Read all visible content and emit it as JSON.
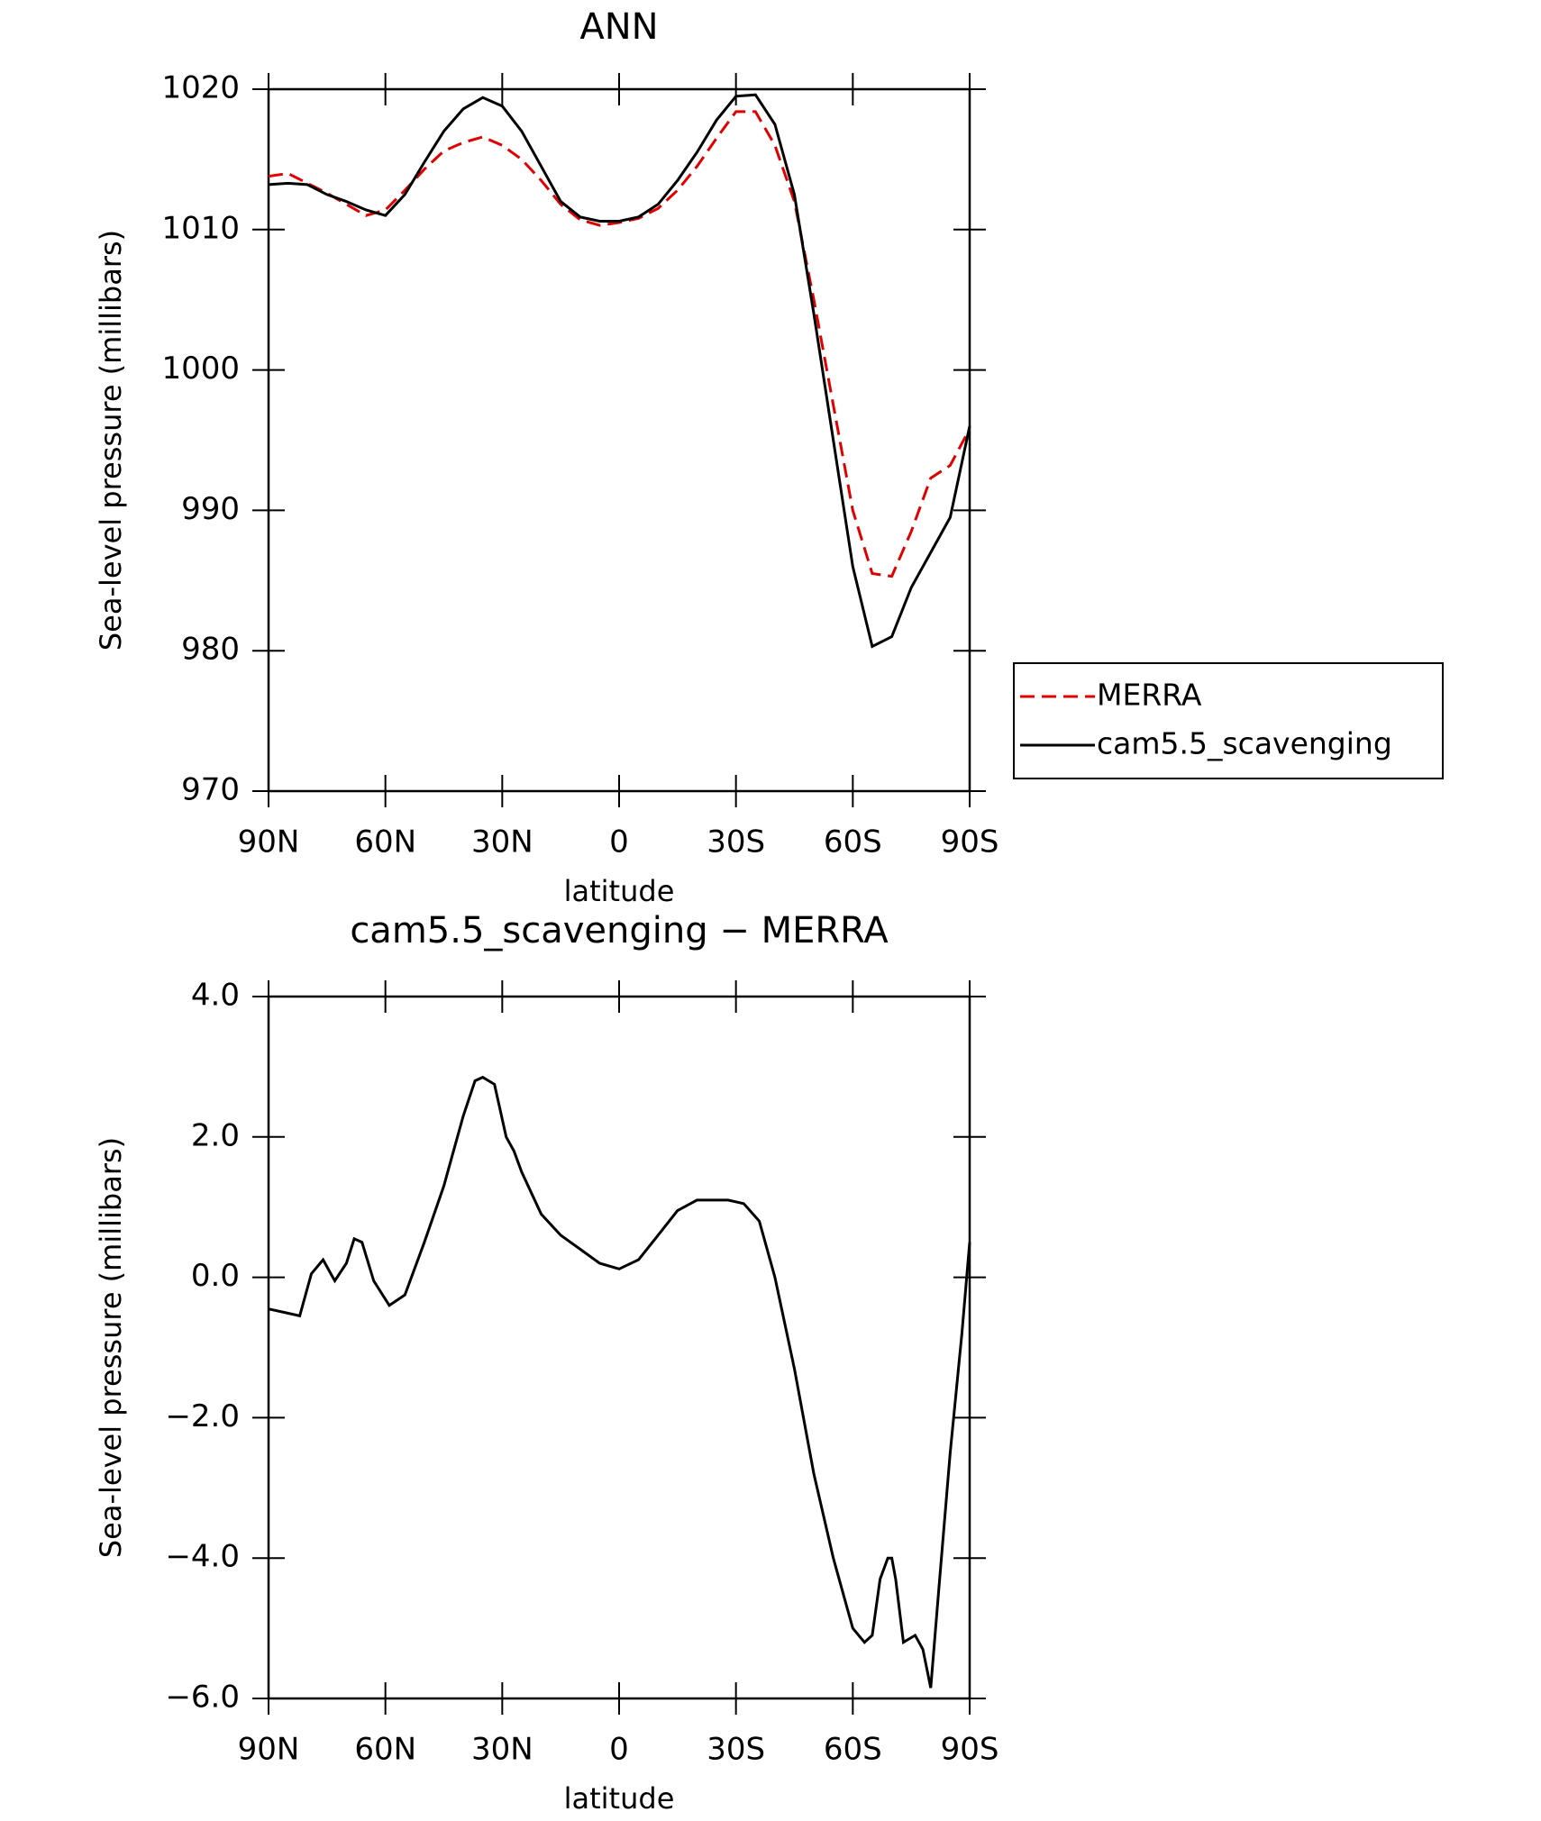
{
  "chart_data": [
    {
      "type": "line",
      "title": "ANN",
      "x_label": "latitude",
      "y_label": "Sea-level pressure (millibars)",
      "x": [
        90,
        85,
        80,
        75,
        70,
        65,
        60,
        55,
        50,
        45,
        40,
        35,
        30,
        25,
        20,
        15,
        10,
        5,
        0,
        -5,
        -10,
        -15,
        -20,
        -25,
        -30,
        -35,
        -40,
        -45,
        -50,
        -55,
        -60,
        -65,
        -70,
        -75,
        -80,
        -85,
        -90
      ],
      "series": [
        {
          "name": "MERRA",
          "color": "#e00000",
          "dashed": true,
          "values": [
            1013.8,
            1014.0,
            1013.3,
            1012.6,
            1011.8,
            1011.0,
            1011.4,
            1012.8,
            1014.3,
            1015.6,
            1016.2,
            1016.6,
            1016.0,
            1015.0,
            1013.5,
            1011.8,
            1010.7,
            1010.3,
            1010.5,
            1010.8,
            1011.5,
            1012.8,
            1014.5,
            1016.5,
            1018.4,
            1018.4,
            1016.0,
            1012.0,
            1005.0,
            997.5,
            990.0,
            985.5,
            985.3,
            988.5,
            992.3,
            993.2,
            995.8
          ]
        },
        {
          "name": "cam5.5_scavenging",
          "color": "#000000",
          "dashed": false,
          "values": [
            1013.2,
            1013.3,
            1013.2,
            1012.5,
            1012.0,
            1011.4,
            1011.0,
            1012.5,
            1014.8,
            1017.0,
            1018.6,
            1019.4,
            1018.8,
            1017.0,
            1014.5,
            1012.0,
            1010.9,
            1010.6,
            1010.6,
            1010.9,
            1011.8,
            1013.5,
            1015.5,
            1017.8,
            1019.5,
            1019.6,
            1017.5,
            1012.5,
            1004.0,
            995.0,
            986.0,
            980.3,
            981.0,
            984.5,
            987.0,
            989.5,
            996.0
          ]
        }
      ],
      "xlim": [
        90,
        -90
      ],
      "xticks": [
        {
          "value": 90,
          "label": "90N"
        },
        {
          "value": 60,
          "label": "60N"
        },
        {
          "value": 30,
          "label": "30N"
        },
        0,
        {
          "value": -30,
          "label": "30S"
        },
        {
          "value": -60,
          "label": "60S"
        },
        {
          "value": -90,
          "label": "90S"
        }
      ],
      "ylim": [
        970,
        1020
      ],
      "yticks": [
        970,
        980,
        990,
        1000,
        1010,
        1020
      ],
      "legend": "right"
    },
    {
      "type": "line",
      "title": "cam5.5_scavenging − MERRA",
      "x_label": "latitude",
      "y_label": "Sea-level pressure (millibars)",
      "x": [
        90,
        86,
        82,
        79,
        76,
        73,
        70,
        68,
        66,
        63,
        59,
        55,
        50,
        45,
        43,
        40,
        37,
        35,
        32,
        29,
        27,
        25,
        20,
        15,
        10,
        5,
        0,
        -5,
        -10,
        -15,
        -20,
        -24,
        -28,
        -32,
        -36,
        -40,
        -45,
        -50,
        -55,
        -60,
        -63,
        -65,
        -67,
        -69,
        -70,
        -71,
        -73,
        -76,
        -78,
        -80,
        -82,
        -85,
        -88,
        -90
      ],
      "values": [
        -0.45,
        -0.5,
        -0.55,
        0.05,
        0.25,
        -0.05,
        0.2,
        0.55,
        0.5,
        -0.05,
        -0.4,
        -0.25,
        0.5,
        1.3,
        1.7,
        2.3,
        2.8,
        2.85,
        2.75,
        2.0,
        1.8,
        1.5,
        0.9,
        0.6,
        0.4,
        0.2,
        0.12,
        0.25,
        0.6,
        0.95,
        1.1,
        1.1,
        1.1,
        1.05,
        0.8,
        0.0,
        -1.3,
        -2.8,
        -4.0,
        -5.0,
        -5.2,
        -5.1,
        -4.3,
        -4.0,
        -4.0,
        -4.3,
        -5.2,
        -5.1,
        -5.3,
        -5.85,
        -4.5,
        -2.5,
        -0.8,
        0.5
      ],
      "color": "#000000",
      "xlim": [
        90,
        -90
      ],
      "xticks": [
        {
          "value": 90,
          "label": "90N"
        },
        {
          "value": 60,
          "label": "60N"
        },
        {
          "value": 30,
          "label": "30N"
        },
        0,
        {
          "value": -30,
          "label": "30S"
        },
        {
          "value": -60,
          "label": "60S"
        },
        {
          "value": -90,
          "label": "90S"
        }
      ],
      "ylim": [
        -6,
        4
      ],
      "yticks": [
        {
          "value": -6,
          "label": "−6.0"
        },
        {
          "value": -4,
          "label": "−4.0"
        },
        {
          "value": -2,
          "label": "−2.0"
        },
        {
          "value": 0,
          "label": "0.0"
        },
        {
          "value": 2,
          "label": "2.0"
        },
        {
          "value": 4,
          "label": "4.0"
        }
      ]
    }
  ]
}
